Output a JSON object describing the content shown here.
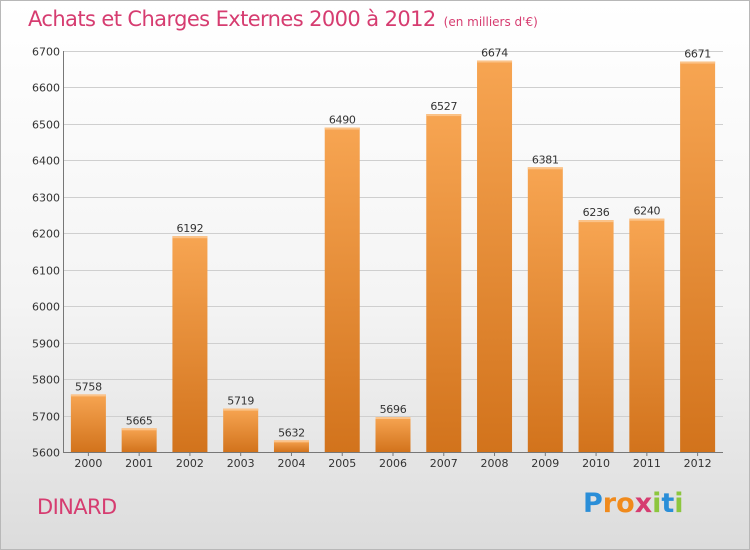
{
  "title": "Achats et Charges Externes 2000 à 2012",
  "unit": "(en milliers d'€)",
  "city": "DINARD",
  "logo": "Proxiti",
  "colors": {
    "title": "#d63c70",
    "bar_light": "#f7a552",
    "bar_dark": "#d2731c",
    "grid": "#cfcfcf"
  },
  "chart_data": {
    "type": "bar",
    "title": "Achats et Charges Externes 2000 à 2012",
    "subtitle": "(en milliers d'€)",
    "categories": [
      "2000",
      "2001",
      "2002",
      "2003",
      "2004",
      "2005",
      "2006",
      "2007",
      "2008",
      "2009",
      "2010",
      "2011",
      "2012"
    ],
    "values": [
      5758,
      5665,
      6192,
      5719,
      5632,
      6490,
      5696,
      6527,
      6674,
      6381,
      6236,
      6240,
      6671
    ],
    "ylim": [
      5600,
      6700
    ],
    "yticks": [
      5600,
      5700,
      5800,
      5900,
      6000,
      6100,
      6200,
      6300,
      6400,
      6500,
      6600,
      6700
    ],
    "grid": true,
    "xlabel": "",
    "ylabel": ""
  }
}
